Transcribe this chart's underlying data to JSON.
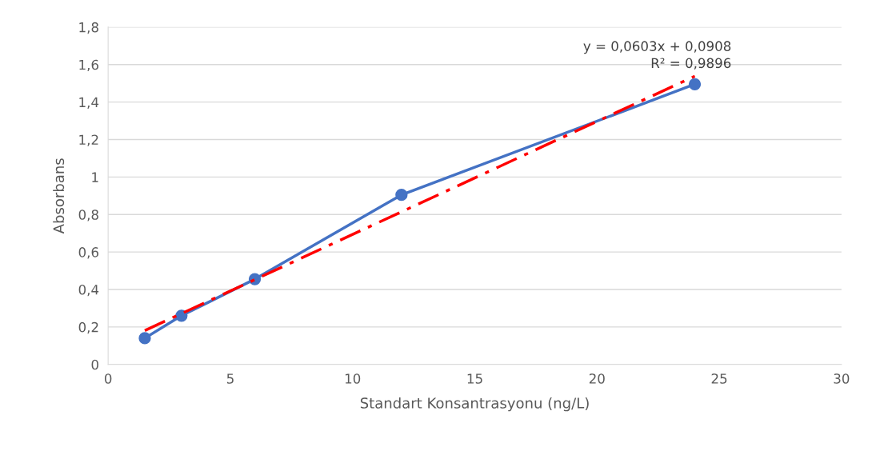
{
  "chart_data": {
    "type": "line",
    "xlabel": "Standart Konsantrasyonu (ng/L)",
    "ylabel": "Absorbans",
    "series": [
      {
        "color": "#4472c4",
        "marker": "circle",
        "line_style": "solid",
        "x": [
          1.5,
          3,
          6,
          12,
          24
        ],
        "values": [
          0.14,
          0.26,
          0.455,
          0.905,
          1.495
        ]
      },
      {
        "color": "#ff0000",
        "marker": "none",
        "line_style": "dashed",
        "x": [
          1.5,
          24
        ],
        "values": [
          0.181,
          1.538
        ]
      }
    ],
    "annotations": [
      "y = 0,0603x + 0,0908\nR² = 0,9896"
    ],
    "xlim": [
      0,
      30
    ],
    "xticks": [
      0,
      5,
      10,
      15,
      20,
      25,
      30
    ],
    "ylim": [
      0,
      1.8
    ],
    "yticks": [
      0,
      {
        "value": 0.2,
        "label": "0,2"
      },
      {
        "value": 0.4,
        "label": "0,4"
      },
      {
        "value": 0.6,
        "label": "0,6"
      },
      {
        "value": 0.8,
        "label": "0,8"
      },
      1,
      {
        "value": 1.2,
        "label": "1,2"
      },
      {
        "value": 1.4,
        "label": "1,4"
      },
      {
        "value": 1.6,
        "label": "1,6"
      },
      {
        "value": 1.8,
        "label": "1,8"
      }
    ],
    "grid": "y"
  }
}
